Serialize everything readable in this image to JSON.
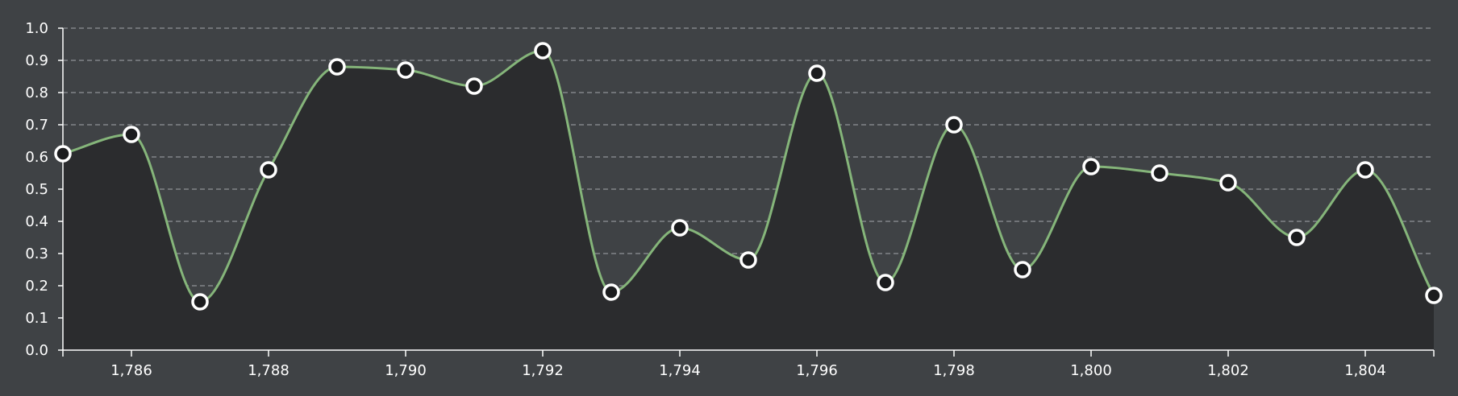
{
  "chart_data": {
    "type": "area",
    "title": "",
    "xlabel": "",
    "ylabel": "",
    "x": [
      1785,
      1786,
      1787,
      1788,
      1789,
      1790,
      1791,
      1792,
      1793,
      1794,
      1795,
      1796,
      1797,
      1798,
      1799,
      1800,
      1801,
      1802,
      1803,
      1804,
      1805
    ],
    "series": [
      {
        "values": [
          0.61,
          0.67,
          0.15,
          0.56,
          0.88,
          0.87,
          0.82,
          0.93,
          0.18,
          0.38,
          0.28,
          0.86,
          0.21,
          0.7,
          0.25,
          0.57,
          0.55,
          0.52,
          0.35,
          0.56,
          0.17
        ],
        "color": "#85b57a"
      }
    ],
    "xlim": [
      1785,
      1805
    ],
    "ylim": [
      0,
      1
    ],
    "x_ticks": [
      "1,786",
      "1,788",
      "1,790",
      "1,792",
      "1,794",
      "1,796",
      "1,798",
      "1,800",
      "1,802",
      "1,804"
    ],
    "y_ticks": [
      "0.0",
      "0.1",
      "0.2",
      "0.3",
      "0.4",
      "0.5",
      "0.6",
      "0.7",
      "0.8",
      "0.9",
      "1.0"
    ],
    "grid": true,
    "legend": "none",
    "colors": {
      "background": "#3f4245",
      "area_fill": "#2b2c2e",
      "line": "#85b57a",
      "marker_fill": "#1b1c1e",
      "marker_stroke": "#ffffff"
    }
  }
}
